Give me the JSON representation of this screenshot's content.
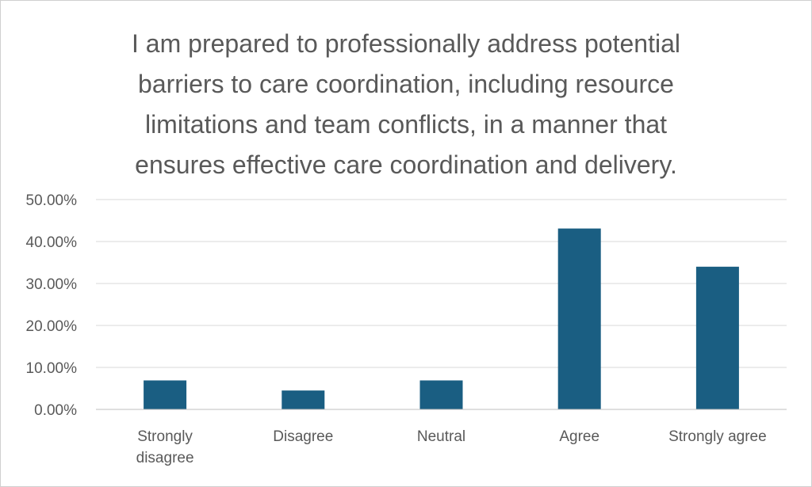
{
  "chart_data": {
    "type": "bar",
    "title_lines": [
      "I am prepared to professionally address potential",
      "barriers to care coordination, including resource",
      "limitations and team conflicts, in a manner that",
      "ensures effective care coordination and delivery."
    ],
    "categories": [
      [
        "Strongly",
        "disagree"
      ],
      [
        "Disagree"
      ],
      [
        "Neutral"
      ],
      [
        "Agree"
      ],
      [
        "Strongly agree"
      ]
    ],
    "values": [
      0.069,
      0.045,
      0.069,
      0.431,
      0.34
    ],
    "y_tick_labels": [
      "0.00%",
      "10.00%",
      "20.00%",
      "30.00%",
      "40.00%",
      "50.00%"
    ],
    "ylim": [
      0,
      0.5
    ],
    "grid": true,
    "bar_color": "#1a5e82",
    "grid_color": "#d9d9d9",
    "axis_color": "#bfbfbf",
    "text_color": "#595959"
  }
}
